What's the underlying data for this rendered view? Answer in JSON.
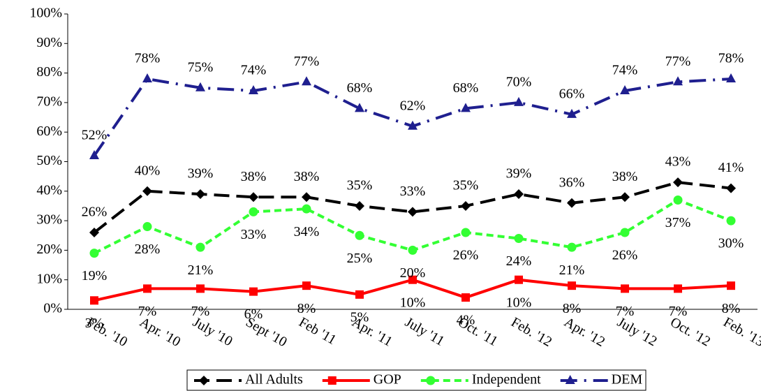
{
  "chart_data": {
    "type": "line",
    "categories": [
      "Feb. '10",
      "Apr. '10",
      "July '10",
      "Sept '10",
      "Feb '11",
      "Apr. '11",
      "July '11",
      "Oct. '11",
      "Feb. '12",
      "Apr. '12",
      "July '12",
      "Oct. '12",
      "Feb. '13"
    ],
    "series": [
      {
        "name": "All Adults",
        "color": "#000000",
        "marker": "diamond",
        "dash": "long",
        "label_position": "above",
        "values": [
          26,
          40,
          39,
          38,
          38,
          35,
          33,
          35,
          39,
          36,
          38,
          43,
          41
        ],
        "value_labels": [
          "26%",
          "40%",
          "39%",
          "38%",
          "38%",
          "35%",
          "33%",
          "35%",
          "39%",
          "36%",
          "38%",
          "43%",
          "41%"
        ]
      },
      {
        "name": "GOP",
        "color": "#ff0000",
        "marker": "square",
        "dash": "solid",
        "label_position": "below",
        "values": [
          3,
          7,
          7,
          6,
          8,
          5,
          10,
          4,
          10,
          8,
          7,
          7,
          8
        ],
        "value_labels": [
          "3%",
          "7%",
          "7%",
          "6%",
          "8%",
          "5%",
          "10%",
          "4%",
          "10%",
          "8%",
          "7%",
          "7%",
          "8%"
        ]
      },
      {
        "name": "Independent",
        "color": "#33ff33",
        "marker": "circle",
        "dash": "short",
        "label_position": "below",
        "values": [
          19,
          28,
          21,
          33,
          34,
          25,
          20,
          26,
          24,
          21,
          26,
          37,
          30
        ],
        "value_labels": [
          "19%",
          "28%",
          "21%",
          "33%",
          "34%",
          "25%",
          "20%",
          "26%",
          "24%",
          "21%",
          "26%",
          "37%",
          "30%"
        ]
      },
      {
        "name": "DEM",
        "color": "#1f1f8f",
        "marker": "triangle",
        "dash": "dashdot",
        "label_position": "above",
        "values": [
          52,
          78,
          75,
          74,
          77,
          68,
          62,
          68,
          70,
          66,
          74,
          77,
          78
        ],
        "value_labels": [
          "52%",
          "78%",
          "75%",
          "74%",
          "77%",
          "68%",
          "62%",
          "68%",
          "70%",
          "66%",
          "74%",
          "77%",
          "78%"
        ]
      }
    ],
    "ylim": [
      0,
      100
    ],
    "yticks": [
      {
        "value": 0,
        "label": "0%"
      },
      {
        "value": 10,
        "label": "10%"
      },
      {
        "value": 20,
        "label": "20%"
      },
      {
        "value": 30,
        "label": "30%"
      },
      {
        "value": 40,
        "label": "40%"
      },
      {
        "value": 50,
        "label": "50%"
      },
      {
        "value": 60,
        "label": "60%"
      },
      {
        "value": 70,
        "label": "70%"
      },
      {
        "value": 80,
        "label": "80%"
      },
      {
        "value": 90,
        "label": "90%"
      },
      {
        "value": 100,
        "label": "100%"
      }
    ],
    "grid": false,
    "legend": "bottom"
  }
}
